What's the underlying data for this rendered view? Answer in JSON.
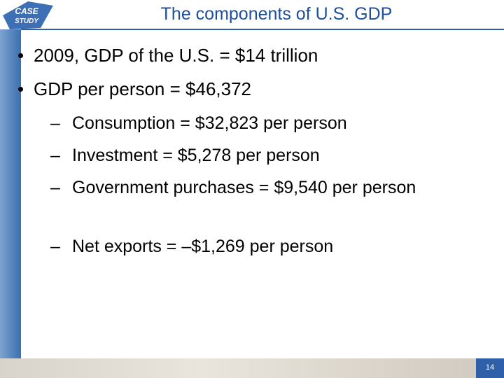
{
  "badge": {
    "line1": "CASE",
    "line2": "STUDY"
  },
  "header": {
    "title": "The components of U.S. GDP"
  },
  "bullets": [
    {
      "text": "2009, GDP of the U.S. = $14 trillion"
    },
    {
      "text": "GDP per person = $46,372",
      "items": [
        "Consumption = $32,823 per person",
        "Investment = $5,278 per person",
        "Government purchases = $9,540 per person",
        "Net exports = –$1,269 per person"
      ]
    }
  ],
  "footer": {
    "page": "14"
  }
}
